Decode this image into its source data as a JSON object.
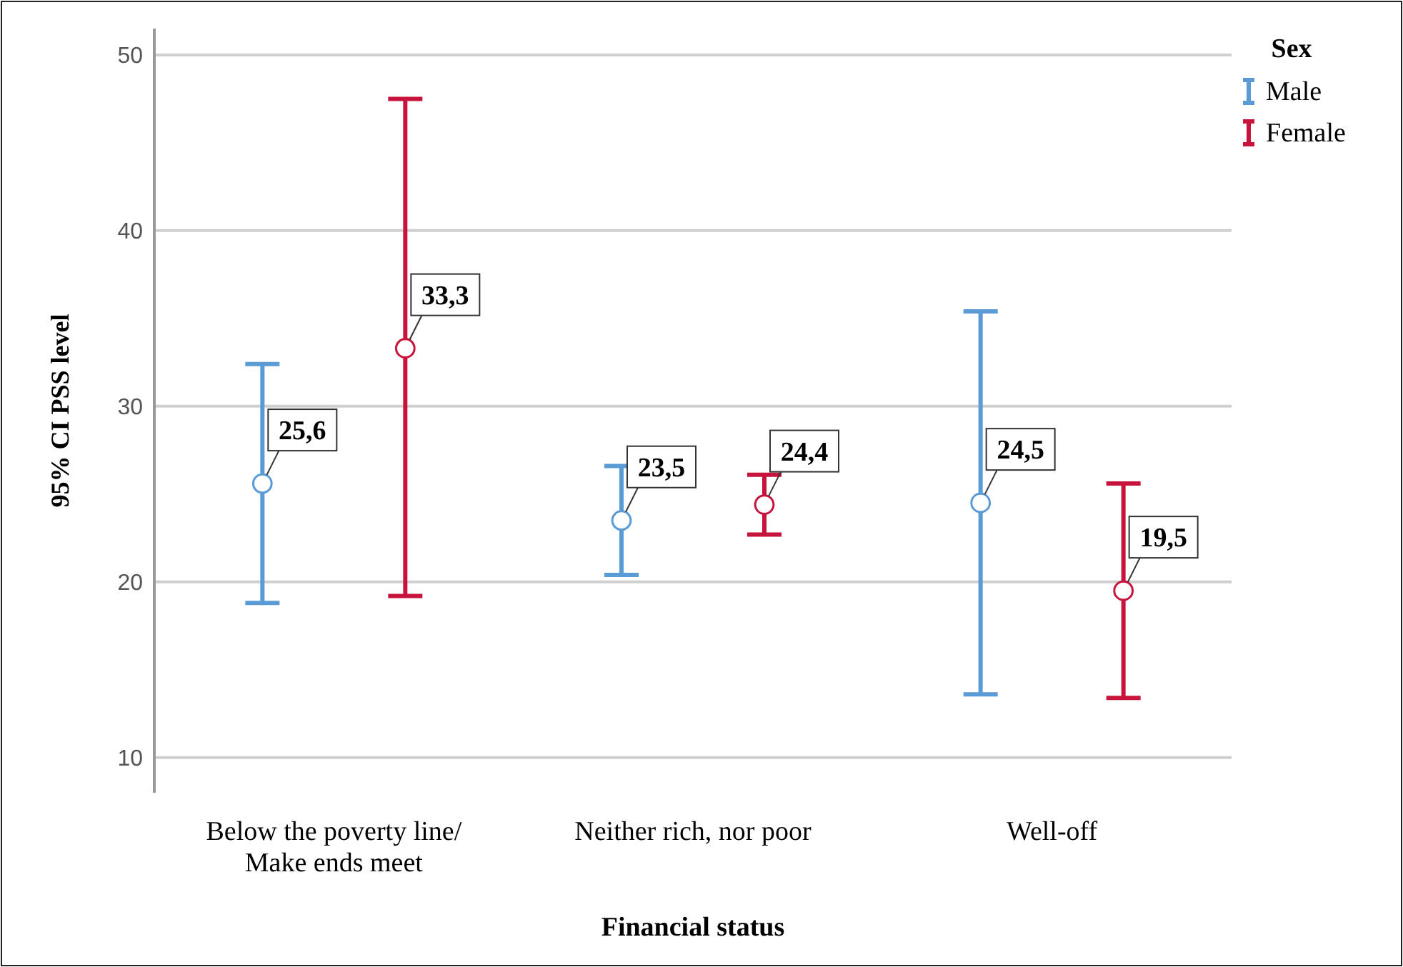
{
  "chart_data": {
    "type": "scatter",
    "xlabel": "Financial status",
    "ylabel": "95% CI  PSS level",
    "legend_title": "Sex",
    "categories": [
      "Below the poverty line/\nMake ends meet",
      "Neither rich, nor poor",
      "Well-off"
    ],
    "series": [
      {
        "name": "Male",
        "color": "#5b9bd5",
        "values": [
          25.6,
          23.5,
          24.5
        ],
        "errors": [
          [
            18.8,
            32.4
          ],
          [
            20.4,
            26.6
          ],
          [
            13.6,
            35.4
          ]
        ],
        "value_labels": [
          "25,6",
          "23,5",
          "24,5"
        ]
      },
      {
        "name": "Female",
        "color": "#c8143c",
        "values": [
          33.3,
          24.4,
          19.5
        ],
        "errors": [
          [
            19.2,
            47.5
          ],
          [
            22.7,
            26.1
          ],
          [
            13.4,
            25.6
          ]
        ],
        "value_labels": [
          "33,3",
          "24,4",
          "19,5"
        ]
      }
    ],
    "ylim": [
      8,
      51.5
    ],
    "yticks": [
      10,
      20,
      30,
      40,
      50
    ],
    "grid": "y",
    "legend": "top right",
    "marker": "circle"
  }
}
